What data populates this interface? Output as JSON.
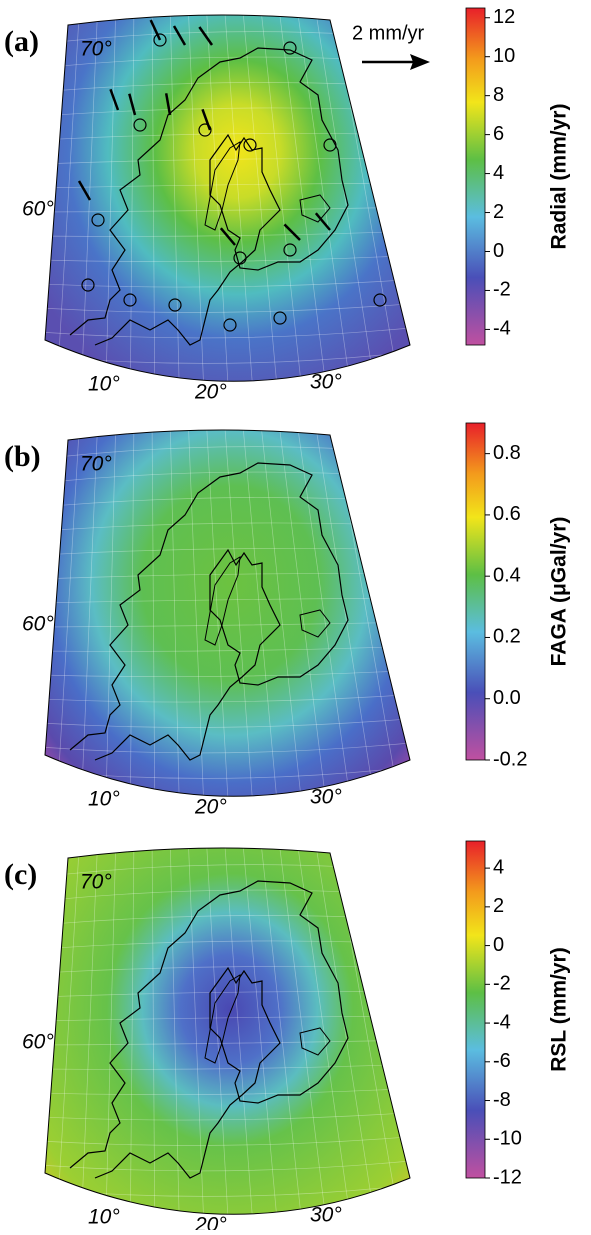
{
  "panels": [
    {
      "label": "(a)",
      "lat_labels": [
        "70°",
        "60°"
      ],
      "lon_labels": [
        "10°",
        "20°",
        "30°"
      ],
      "scale": "2 mm/yr",
      "colorbar": {
        "title": "Radial (mm/yr)",
        "range": [
          -4.8,
          12.5
        ],
        "ticks": [
          12,
          10,
          8,
          6,
          4,
          2,
          0,
          -2,
          -4
        ]
      }
    },
    {
      "label": "(b)",
      "lat_labels": [
        "70°",
        "60°"
      ],
      "lon_labels": [
        "10°",
        "20°",
        "30°"
      ],
      "colorbar": {
        "title": "FAGA (μGal/yr)",
        "range": [
          -0.2,
          0.9
        ],
        "ticks": [
          0.8,
          0.6,
          0.4,
          0.2,
          {
            "value": 0,
            "label": "0.0"
          },
          -0.2
        ]
      }
    },
    {
      "label": "(c)",
      "lat_labels": [
        "70°",
        "60°"
      ],
      "lon_labels": [
        "10°",
        "20°",
        "30°"
      ],
      "colorbar": {
        "title": "RSL (mm/yr)",
        "range": [
          -12,
          5.4
        ],
        "ticks": [
          4,
          2,
          0,
          -2,
          -4,
          -6,
          -8,
          -10,
          -12
        ]
      }
    }
  ]
}
